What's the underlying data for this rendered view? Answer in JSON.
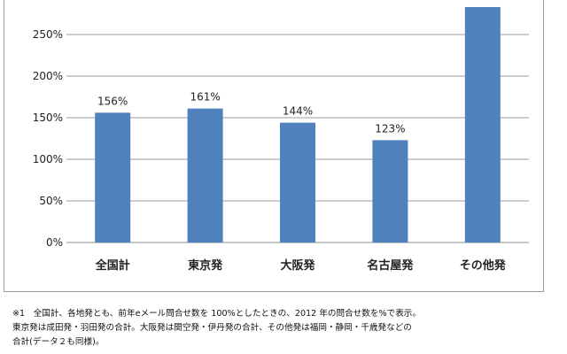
{
  "chart_data": {
    "type": "bar",
    "categories": [
      "全国計",
      "東京発",
      "大阪発",
      "名古屋発",
      "その他発"
    ],
    "values": [
      156,
      161,
      144,
      123,
      283
    ],
    "data_labels": [
      "156%",
      "161%",
      "144%",
      "123%",
      ""
    ],
    "y_ticks": [
      "0%",
      "50%",
      "100%",
      "150%",
      "200%",
      "250%"
    ],
    "ylim": [
      0,
      285
    ],
    "grid": true,
    "bar_color": "#4f81bd"
  },
  "notes": [
    "※1　全国計、各地発とも、前年eメール問合せ数を 100%としたときの、2012 年の問合せ数を%で表示。",
    "東京発は成田発・羽田発の合計。大阪発は関空発・伊丹発の合計、その他発は福岡・静岡・千歳発などの",
    "合計(データ２も同様)。"
  ]
}
